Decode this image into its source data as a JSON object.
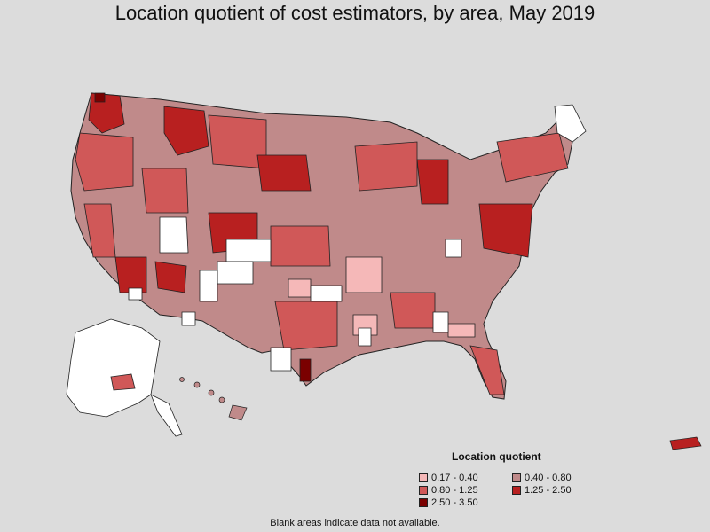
{
  "title": "Location quotient of cost estimators, by area, May 2019",
  "legend": {
    "title": "Location quotient",
    "items": [
      {
        "label": "0.17 - 0.40",
        "color": "#f5b8b8"
      },
      {
        "label": "0.40 - 0.80",
        "color": "#c08a8a"
      },
      {
        "label": "0.80 - 1.25",
        "color": "#d05858"
      },
      {
        "label": "1.25 - 2.50",
        "color": "#b82020"
      },
      {
        "label": "2.50 - 3.50",
        "color": "#7a0000"
      }
    ]
  },
  "footnote": "Blank areas indicate data not available.",
  "colors": {
    "background": "#dcdcdc",
    "no_data": "#ffffff",
    "border": "#222222"
  }
}
